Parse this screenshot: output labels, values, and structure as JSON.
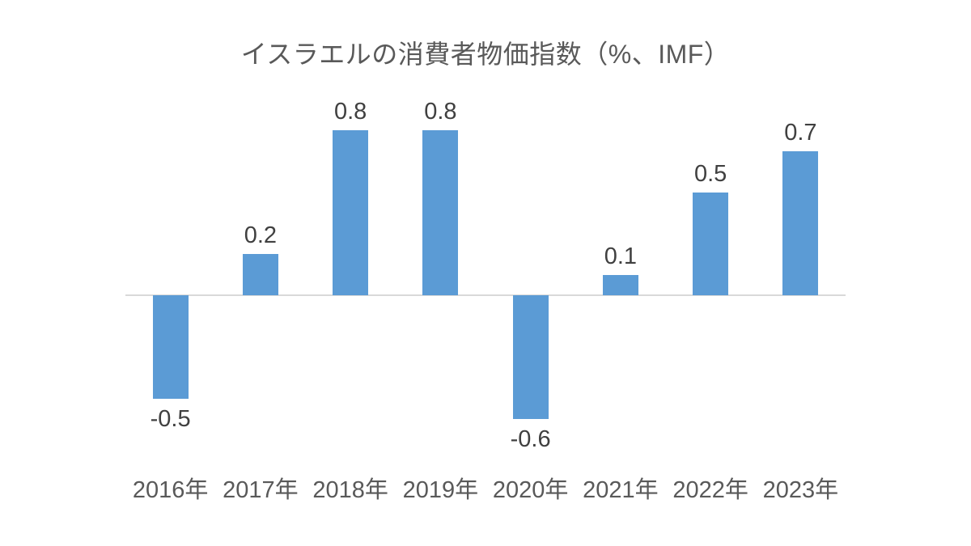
{
  "chart_data": {
    "type": "bar",
    "title": "イスラエルの消費者物価指数（%、IMF）",
    "categories": [
      "2016年",
      "2017年",
      "2018年",
      "2019年",
      "2020年",
      "2021年",
      "2022年",
      "2023年"
    ],
    "values": [
      -0.5,
      0.2,
      0.8,
      0.8,
      -0.6,
      0.1,
      0.5,
      0.7
    ],
    "data_labels": [
      "-0.5",
      "0.2",
      "0.8",
      "0.8",
      "-0.6",
      "0.1",
      "0.5",
      "0.7"
    ],
    "xlabel": "",
    "ylabel": "",
    "ylim": [
      -0.8,
      1.0
    ],
    "grid": false,
    "legend": "none",
    "colors": {
      "bar": "#5b9bd5",
      "axis_line": "#d9d9d9",
      "data_label": "#404040",
      "axis_label": "#595959",
      "title": "#595959",
      "background": "#ffffff"
    }
  }
}
